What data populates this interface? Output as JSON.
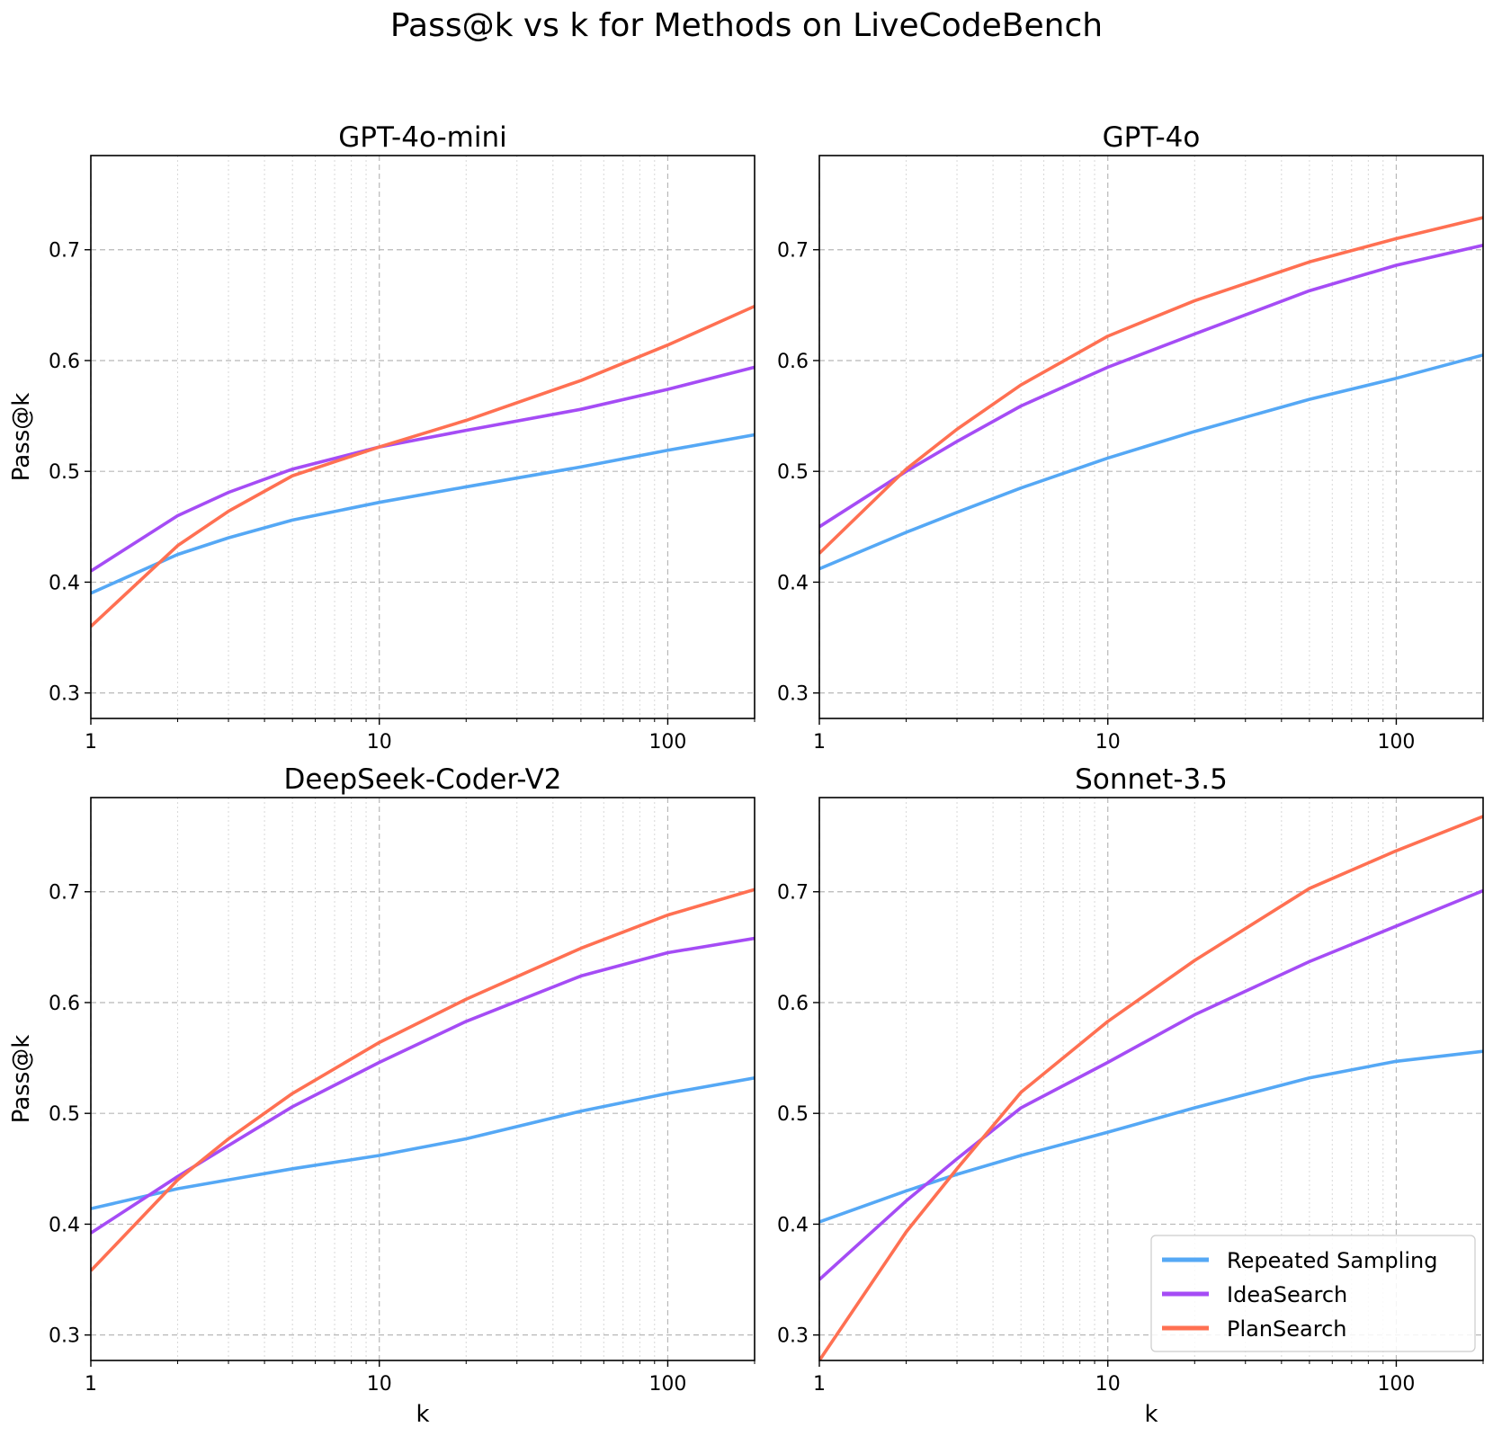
{
  "chart_data": {
    "type": "line",
    "suptitle": "Pass@k vs k for Methods on LiveCodeBench",
    "xlabel": "k",
    "ylabel": "Pass@k",
    "xscale": "log",
    "xlim": [
      1,
      200
    ],
    "ylim": [
      0.277,
      0.785
    ],
    "xticks": [
      1,
      10,
      100
    ],
    "xtick_labels": [
      "1",
      "10",
      "100"
    ],
    "yticks": [
      0.3,
      0.4,
      0.5,
      0.6,
      0.7
    ],
    "ytick_labels": [
      "0.3",
      "0.4",
      "0.5",
      "0.6",
      "0.7"
    ],
    "grid": true,
    "legend": {
      "placement": "lower-right",
      "entries": [
        "Repeated Sampling",
        "IdeaSearch",
        "PlanSearch"
      ]
    },
    "colors": {
      "Repeated Sampling": "#55a8f5",
      "IdeaSearch": "#a54cf5",
      "PlanSearch": "#ff7052"
    },
    "k": [
      1,
      2,
      3,
      5,
      10,
      20,
      50,
      100,
      200
    ],
    "panels": [
      {
        "title": "GPT-4o-mini",
        "series": [
          {
            "name": "Repeated Sampling",
            "values": [
              0.39,
              0.425,
              0.44,
              0.456,
              0.472,
              0.486,
              0.504,
              0.519,
              0.533
            ]
          },
          {
            "name": "IdeaSearch",
            "values": [
              0.41,
              0.46,
              0.481,
              0.502,
              0.522,
              0.537,
              0.556,
              0.574,
              0.594
            ]
          },
          {
            "name": "PlanSearch",
            "values": [
              0.36,
              0.433,
              0.464,
              0.496,
              0.522,
              0.546,
              0.582,
              0.614,
              0.649
            ]
          }
        ]
      },
      {
        "title": "GPT-4o",
        "series": [
          {
            "name": "Repeated Sampling",
            "values": [
              0.412,
              0.445,
              0.463,
              0.485,
              0.512,
              0.536,
              0.565,
              0.584,
              0.605
            ]
          },
          {
            "name": "IdeaSearch",
            "values": [
              0.45,
              0.5,
              0.527,
              0.559,
              0.594,
              0.624,
              0.663,
              0.686,
              0.704
            ]
          },
          {
            "name": "PlanSearch",
            "values": [
              0.426,
              0.502,
              0.538,
              0.578,
              0.622,
              0.654,
              0.689,
              0.71,
              0.729
            ]
          }
        ]
      },
      {
        "title": "DeepSeek-Coder-V2",
        "series": [
          {
            "name": "Repeated Sampling",
            "values": [
              0.414,
              0.432,
              0.44,
              0.45,
              0.462,
              0.477,
              0.502,
              0.518,
              0.532
            ]
          },
          {
            "name": "IdeaSearch",
            "values": [
              0.392,
              0.443,
              0.471,
              0.506,
              0.546,
              0.583,
              0.624,
              0.645,
              0.658
            ]
          },
          {
            "name": "PlanSearch",
            "values": [
              0.358,
              0.44,
              0.477,
              0.518,
              0.564,
              0.603,
              0.649,
              0.679,
              0.702
            ]
          }
        ]
      },
      {
        "title": "Sonnet-3.5",
        "series": [
          {
            "name": "Repeated Sampling",
            "values": [
              0.402,
              0.43,
              0.445,
              0.462,
              0.483,
              0.505,
              0.532,
              0.547,
              0.556
            ]
          },
          {
            "name": "IdeaSearch",
            "values": [
              0.35,
              0.421,
              0.459,
              0.505,
              0.546,
              0.589,
              0.637,
              0.669,
              0.701
            ]
          },
          {
            "name": "PlanSearch",
            "values": [
              0.277,
              0.393,
              0.45,
              0.519,
              0.583,
              0.638,
              0.703,
              0.737,
              0.768
            ]
          }
        ]
      }
    ]
  }
}
